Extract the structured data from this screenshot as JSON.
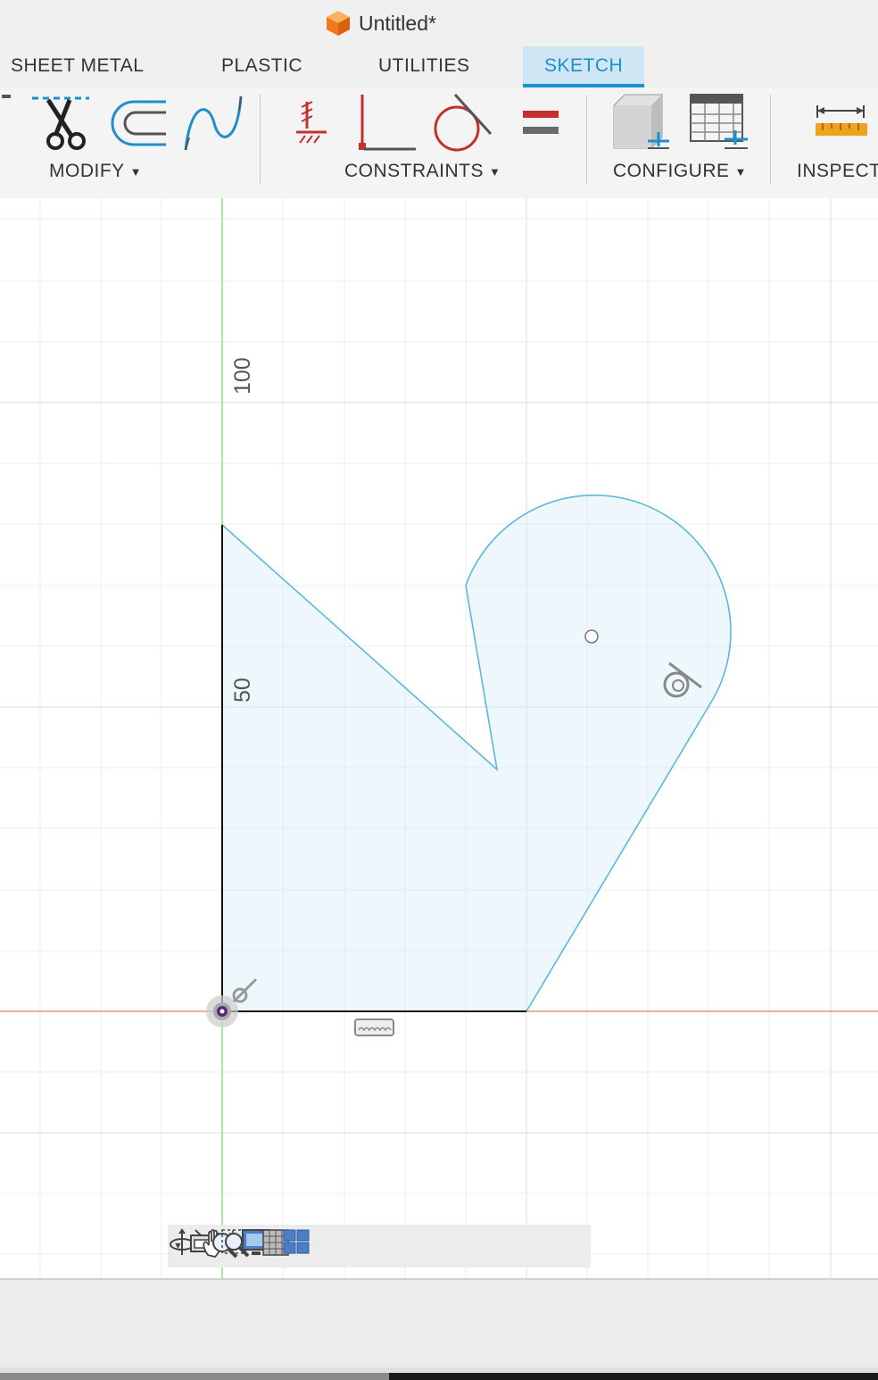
{
  "window": {
    "title": "Untitled*",
    "icon": "orange-cube-icon"
  },
  "tabs": [
    {
      "label": "SHEET METAL"
    },
    {
      "label": "PLASTIC"
    },
    {
      "label": "UTILITIES"
    },
    {
      "label": "SKETCH",
      "active": true
    }
  ],
  "toolbar": {
    "groups": {
      "modify": "MODIFY",
      "constraints": "CONSTRAINTS",
      "configure": "CONFIGURE",
      "inspect": "INSPECT"
    },
    "tools": [
      "trim-icon",
      "offset-icon",
      "spline-icon",
      "fix-constraint-icon",
      "perpendicular-icon",
      "tangent-icon",
      "equal-icon",
      "change-parameters-icon",
      "configuration-table-icon",
      "measure-icon"
    ]
  },
  "canvas": {
    "ruler_labels": {
      "upper": "100",
      "lower": "50"
    },
    "colors": {
      "axis_x": "#e05555",
      "axis_y": "#8fdc8f",
      "profile_fill": "#d8eef8",
      "profile_stroke": "#5bb8dc",
      "grid": "#e6e6e6"
    }
  },
  "navbar": {
    "tools": [
      "orbit-icon",
      "look-at-icon",
      "pan-icon",
      "zoom-icon",
      "fit-icon",
      "display-settings-icon",
      "grid-settings-icon",
      "viewports-icon"
    ]
  }
}
